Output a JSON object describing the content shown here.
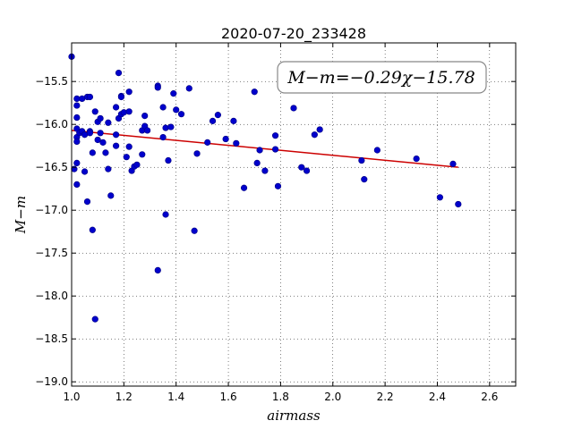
{
  "chart_data": {
    "type": "scatter",
    "title": "2020-07-20_233428",
    "xlabel": "airmass",
    "ylabel": "M−m",
    "xlim": [
      1.0,
      2.7
    ],
    "ylim": [
      -19.05,
      -15.05
    ],
    "x_ticks": [
      1.0,
      1.2,
      1.4,
      1.6,
      1.8,
      2.0,
      2.2,
      2.4,
      2.6
    ],
    "x_tick_labels": [
      "1.0",
      "1.2",
      "1.4",
      "1.6",
      "1.8",
      "2.0",
      "2.2",
      "2.4",
      "2.6"
    ],
    "y_ticks": [
      -15.5,
      -16.0,
      -16.5,
      -17.0,
      -17.5,
      -18.0,
      -18.5,
      -19.0
    ],
    "y_tick_labels": [
      "−15.5",
      "−16.0",
      "−16.5",
      "−17.0",
      "−17.5",
      "−18.0",
      "−18.5",
      "−19.0"
    ],
    "grid": true,
    "annotation": "M−m=−0.29χ−15.78",
    "annotation_position": "top-right",
    "colors": {
      "points": "#0000cc",
      "point_edge": "#000080",
      "fit": "#cc0000"
    },
    "fit": {
      "slope": -0.29,
      "intercept": -15.78,
      "x_range": [
        1.0,
        2.48
      ]
    },
    "points": [
      [
        1.0,
        -15.21
      ],
      [
        1.01,
        -16.52
      ],
      [
        1.02,
        -16.7
      ],
      [
        1.02,
        -16.45
      ],
      [
        1.02,
        -15.7
      ],
      [
        1.02,
        -15.78
      ],
      [
        1.02,
        -15.92
      ],
      [
        1.02,
        -16.05
      ],
      [
        1.02,
        -16.15
      ],
      [
        1.02,
        -16.2
      ],
      [
        1.03,
        -16.1
      ],
      [
        1.04,
        -15.7
      ],
      [
        1.04,
        -16.08
      ],
      [
        1.05,
        -16.12
      ],
      [
        1.05,
        -16.55
      ],
      [
        1.06,
        -15.68
      ],
      [
        1.06,
        -16.9
      ],
      [
        1.07,
        -15.68
      ],
      [
        1.07,
        -16.08
      ],
      [
        1.07,
        -16.1
      ],
      [
        1.08,
        -17.23
      ],
      [
        1.08,
        -16.33
      ],
      [
        1.09,
        -15.85
      ],
      [
        1.09,
        -18.27
      ],
      [
        1.1,
        -15.97
      ],
      [
        1.1,
        -16.18
      ],
      [
        1.11,
        -15.93
      ],
      [
        1.11,
        -16.1
      ],
      [
        1.12,
        -16.21
      ],
      [
        1.13,
        -16.33
      ],
      [
        1.14,
        -15.98
      ],
      [
        1.14,
        -16.52
      ],
      [
        1.15,
        -16.83
      ],
      [
        1.17,
        -15.8
      ],
      [
        1.17,
        -16.12
      ],
      [
        1.17,
        -16.25
      ],
      [
        1.18,
        -15.4
      ],
      [
        1.18,
        -15.93
      ],
      [
        1.19,
        -15.67
      ],
      [
        1.19,
        -15.68
      ],
      [
        1.19,
        -15.88
      ],
      [
        1.2,
        -15.86
      ],
      [
        1.21,
        -16.38
      ],
      [
        1.22,
        -16.26
      ],
      [
        1.22,
        -15.62
      ],
      [
        1.22,
        -15.85
      ],
      [
        1.23,
        -16.54
      ],
      [
        1.24,
        -16.49
      ],
      [
        1.25,
        -16.47
      ],
      [
        1.27,
        -16.35
      ],
      [
        1.27,
        -16.07
      ],
      [
        1.28,
        -15.9
      ],
      [
        1.28,
        -16.02
      ],
      [
        1.29,
        -16.07
      ],
      [
        1.33,
        -15.55
      ],
      [
        1.33,
        -15.57
      ],
      [
        1.33,
        -17.7
      ],
      [
        1.35,
        -16.15
      ],
      [
        1.35,
        -15.8
      ],
      [
        1.36,
        -16.04
      ],
      [
        1.36,
        -17.05
      ],
      [
        1.37,
        -16.42
      ],
      [
        1.38,
        -16.03
      ],
      [
        1.39,
        -15.64
      ],
      [
        1.4,
        -15.83
      ],
      [
        1.42,
        -15.88
      ],
      [
        1.45,
        -15.58
      ],
      [
        1.47,
        -17.24
      ],
      [
        1.48,
        -16.34
      ],
      [
        1.52,
        -16.21
      ],
      [
        1.54,
        -15.96
      ],
      [
        1.56,
        -15.89
      ],
      [
        1.59,
        -16.17
      ],
      [
        1.62,
        -15.96
      ],
      [
        1.63,
        -16.22
      ],
      [
        1.66,
        -16.74
      ],
      [
        1.7,
        -15.62
      ],
      [
        1.71,
        -16.45
      ],
      [
        1.72,
        -16.3
      ],
      [
        1.74,
        -16.54
      ],
      [
        1.78,
        -16.29
      ],
      [
        1.78,
        -16.13
      ],
      [
        1.79,
        -16.72
      ],
      [
        1.85,
        -15.81
      ],
      [
        1.88,
        -16.5
      ],
      [
        1.9,
        -16.54
      ],
      [
        1.93,
        -16.12
      ],
      [
        1.95,
        -16.06
      ],
      [
        2.11,
        -16.42
      ],
      [
        2.12,
        -16.64
      ],
      [
        2.17,
        -16.3
      ],
      [
        2.32,
        -16.4
      ],
      [
        2.41,
        -16.85
      ],
      [
        2.46,
        -16.46
      ],
      [
        2.48,
        -16.93
      ]
    ]
  }
}
